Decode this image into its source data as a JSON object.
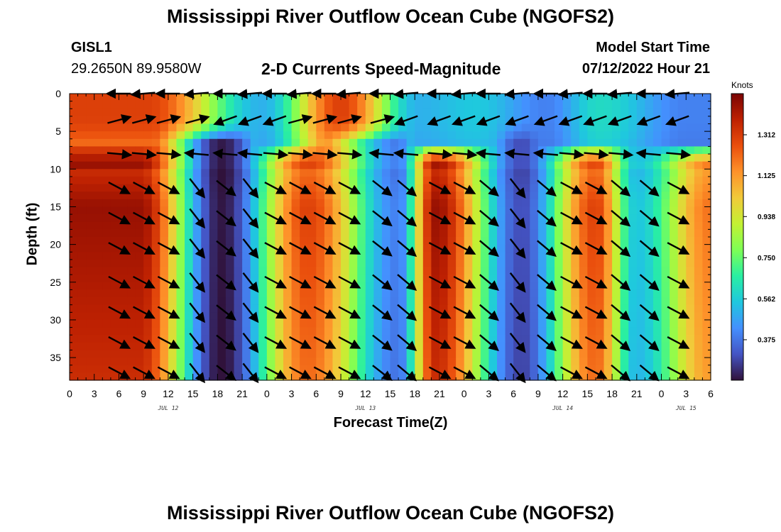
{
  "header": {
    "title": "Mississippi River Outflow Ocean Cube (NGOFS2)",
    "station": "GISL1",
    "coords": "29.2650N  89.9580W",
    "subtitle": "2-D Currents Speed-Magnitude",
    "model_start_label": "Model Start Time",
    "model_start_value": "07/12/2022 Hour 21"
  },
  "footer": {
    "title": "Mississippi River Outflow Ocean Cube (NGOFS2)"
  },
  "chart_data": {
    "type": "heatmap",
    "title": "2-D Currents Speed-Magnitude",
    "xlabel": "Forecast Time(Z)",
    "ylabel": "Depth (ft)",
    "x_tick_labels": [
      "0",
      "3",
      "6",
      "9",
      "12",
      "15",
      "18",
      "21",
      "0",
      "3",
      "6",
      "9",
      "12",
      "15",
      "18",
      "21",
      "0",
      "3",
      "6",
      "9",
      "12",
      "15",
      "18",
      "21",
      "0",
      "3",
      "6"
    ],
    "day_labels": [
      {
        "label": "JUL 12",
        "hour": 12
      },
      {
        "label": "JUL 13",
        "hour": 36
      },
      {
        "label": "JUL 14",
        "hour": 60
      },
      {
        "label": "JUL 15",
        "hour": 75
      }
    ],
    "xlim_hours": [
      0,
      78
    ],
    "y_ticks": [
      0,
      5,
      10,
      15,
      20,
      25,
      30,
      35
    ],
    "ylim": [
      0,
      38
    ],
    "colorbar": {
      "unit": "Knots",
      "ticks": [
        1.312,
        1.125,
        0.938,
        0.75,
        0.562,
        0.375
      ],
      "tick_labels": [
        "1.312",
        "1.125",
        "0.938",
        "0.750",
        "0.562",
        "0.375"
      ],
      "range": [
        0.19,
        1.5
      ],
      "colormap": [
        "#30123b",
        "#4454c4",
        "#4490fe",
        "#1fc8de",
        "#29efa2",
        "#7eff55",
        "#c3f133",
        "#f1ca3a",
        "#fe922a",
        "#ea4f0d",
        "#be2102",
        "#7a0403"
      ]
    },
    "speed_knots": {
      "surface_peaks": [
        {
          "hour": 9.5,
          "value": 1.3
        },
        {
          "hour": 23.5,
          "value": 0.5
        },
        {
          "hour": 33.0,
          "value": 1.3
        },
        {
          "hour": 42.5,
          "value": 0.5
        },
        {
          "hour": 49.5,
          "value": 0.55
        },
        {
          "hour": 58.0,
          "value": 0.4
        },
        {
          "hour": 64.5,
          "value": 0.6
        },
        {
          "hour": 75.0,
          "value": 0.4
        }
      ],
      "subsurface_peaks": [
        {
          "hour": 8.5,
          "value": 1.45
        },
        {
          "hour": 18.5,
          "value": 0.2
        },
        {
          "hour": 29.0,
          "value": 1.3
        },
        {
          "hour": 40.0,
          "value": 0.4
        },
        {
          "hour": 44.5,
          "value": 1.45
        },
        {
          "hour": 55.0,
          "value": 0.3
        },
        {
          "hour": 64.0,
          "value": 1.3
        },
        {
          "hour": 69.0,
          "value": 0.55
        },
        {
          "hour": 78.0,
          "value": 1.2
        }
      ]
    },
    "vector_rows_ft": [
      0,
      3.5,
      8,
      12.5,
      16.5,
      20.5,
      25,
      29,
      33,
      37
    ],
    "vector_columns_hours": [
      6,
      9,
      12,
      15.5,
      19,
      22,
      25,
      28,
      31,
      34,
      38,
      41,
      45,
      48,
      51,
      54.5,
      58,
      61,
      64,
      67,
      70.5,
      74
    ]
  }
}
